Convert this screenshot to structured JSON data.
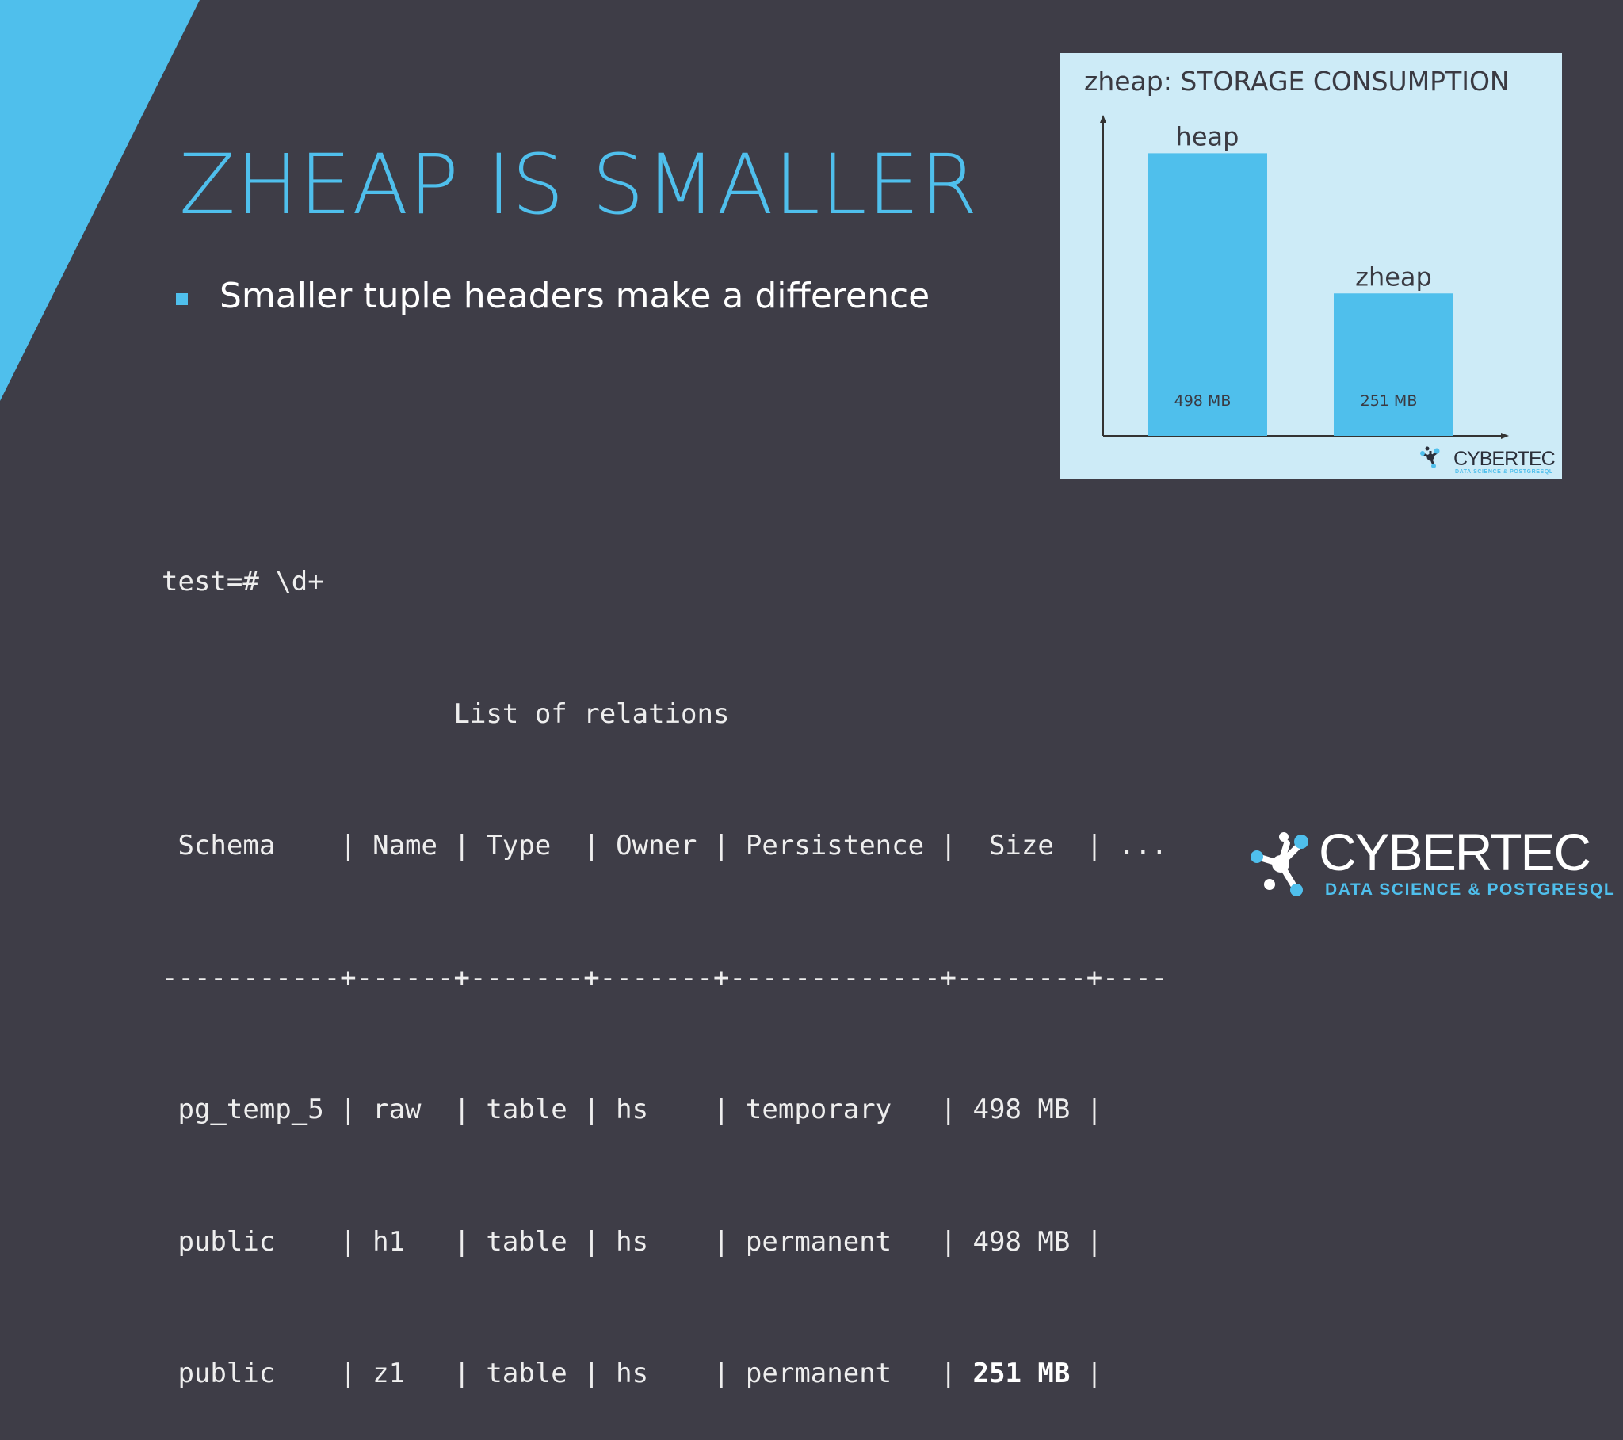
{
  "slide": {
    "title": "ZHEAP IS SMALLER",
    "bullets": [
      "Smaller tuple headers make a difference"
    ]
  },
  "chart_data": {
    "type": "bar",
    "title": "zheap: STORAGE CONSUMPTION",
    "categories": [
      "heap",
      "zheap"
    ],
    "series": [
      {
        "values": [
          498,
          251
        ]
      }
    ],
    "data_labels": [
      "498 MB",
      "251 MB"
    ],
    "unit": "MB",
    "ylim": [
      0,
      560
    ],
    "grid": false,
    "legend": "none",
    "bar_color": "#4fbfec",
    "background": "#cdebf7"
  },
  "chart_logo": {
    "wordmark": "CYBERTEC",
    "tagline": "DATA SCIENCE & POSTGRESQL",
    "icon": "molecule-icon"
  },
  "terminal": {
    "prompt": "test=# \\d+",
    "caption": "List of relations",
    "header": " Schema    | Name | Type  | Owner | Persistence |  Size  | ...",
    "separator": "-----------+------+-------+-------+-------------+--------+----",
    "rows": [
      {
        "prefix": " pg_temp_5 | raw  | table | hs    | temporary   | ",
        "size": "498 MB",
        "suffix": " |",
        "highlight": false
      },
      {
        "prefix": " public    | h1   | table | hs    | permanent   | ",
        "size": "498 MB",
        "suffix": " |",
        "highlight": false
      },
      {
        "prefix": " public    | z1   | table | hs    | permanent   | ",
        "size": "251 MB",
        "suffix": " |",
        "highlight": true
      }
    ]
  },
  "footer": {
    "wordmark": "CYBERTEC",
    "tagline": "DATA SCIENCE & POSTGRESQL",
    "icon": "molecule-icon"
  },
  "colors": {
    "accent": "#4fbfec",
    "background": "#3e3d47",
    "text": "#ffffff"
  }
}
